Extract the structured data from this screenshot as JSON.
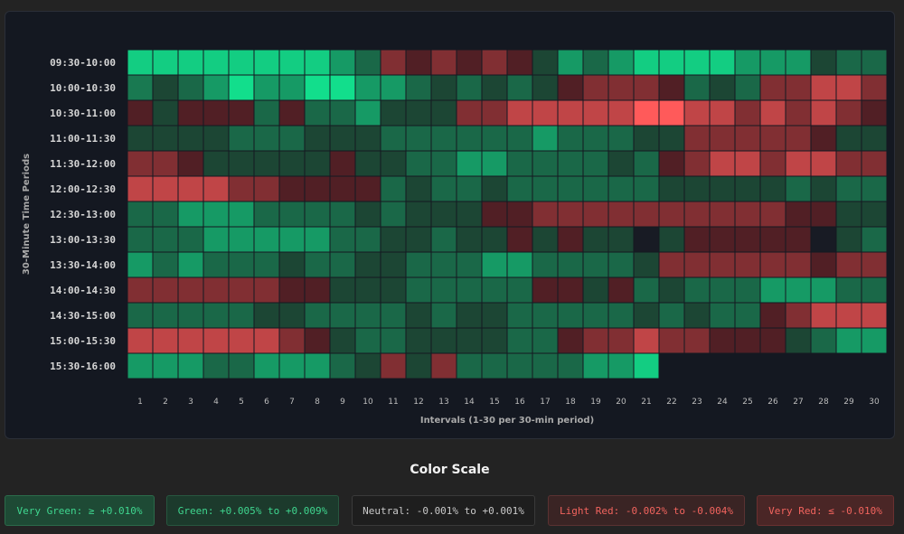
{
  "chart_data": {
    "type": "heatmap",
    "xlabel": "Intervals (1-30 per 30-min period)",
    "ylabel": "30-Minute Time Periods",
    "rows": [
      "09:30-10:00",
      "10:00-10:30",
      "10:30-11:00",
      "11:00-11:30",
      "11:30-12:00",
      "12:00-12:30",
      "12:30-13:00",
      "13:00-13:30",
      "13:30-14:00",
      "14:00-14:30",
      "14:30-15:00",
      "15:00-15:30",
      "15:30-16:00"
    ],
    "columns": [
      "1",
      "2",
      "3",
      "4",
      "5",
      "6",
      "7",
      "8",
      "9",
      "10",
      "11",
      "12",
      "13",
      "14",
      "15",
      "16",
      "17",
      "18",
      "19",
      "20",
      "21",
      "22",
      "23",
      "24",
      "25",
      "26",
      "27",
      "28",
      "29",
      "30"
    ],
    "value_unit": "% change (estimated from color)",
    "values": [
      [
        0.011,
        0.011,
        0.011,
        0.011,
        0.011,
        0.011,
        0.011,
        0.011,
        0.008,
        0.005,
        -0.006,
        -0.003,
        -0.006,
        -0.003,
        -0.006,
        -0.003,
        0.003,
        0.008,
        0.005,
        0.008,
        0.011,
        0.011,
        0.011,
        0.011,
        0.008,
        0.008,
        0.008,
        0.003,
        0.005,
        0.005
      ],
      [
        0.006,
        0.003,
        0.005,
        0.008,
        0.012,
        0.008,
        0.008,
        0.012,
        0.012,
        0.008,
        0.008,
        0.005,
        0.003,
        0.005,
        0.003,
        0.005,
        0.003,
        -0.003,
        -0.006,
        -0.006,
        -0.006,
        -0.003,
        0.005,
        0.003,
        0.005,
        -0.006,
        -0.006,
        -0.01,
        -0.01,
        -0.006
      ],
      [
        -0.003,
        0.003,
        -0.003,
        -0.003,
        -0.003,
        0.005,
        -0.003,
        0.005,
        0.005,
        0.008,
        0.003,
        0.003,
        0.003,
        -0.006,
        -0.006,
        -0.01,
        -0.01,
        -0.01,
        -0.01,
        -0.01,
        -0.014,
        -0.014,
        -0.01,
        -0.01,
        -0.006,
        -0.01,
        -0.006,
        -0.01,
        -0.006,
        -0.003
      ],
      [
        0.003,
        0.003,
        0.003,
        0.003,
        0.005,
        0.005,
        0.005,
        0.003,
        0.003,
        0.003,
        0.005,
        0.005,
        0.005,
        0.005,
        0.005,
        0.005,
        0.008,
        0.005,
        0.005,
        0.005,
        0.003,
        0.003,
        -0.006,
        -0.006,
        -0.006,
        -0.006,
        -0.006,
        -0.003,
        0.003,
        0.003
      ],
      [
        -0.006,
        -0.006,
        -0.003,
        0.003,
        0.003,
        0.003,
        0.003,
        0.003,
        -0.003,
        0.003,
        0.003,
        0.005,
        0.005,
        0.008,
        0.008,
        0.005,
        0.005,
        0.005,
        0.005,
        0.003,
        0.005,
        -0.003,
        -0.006,
        -0.01,
        -0.01,
        -0.006,
        -0.01,
        -0.01,
        -0.006,
        -0.006
      ],
      [
        -0.01,
        -0.01,
        -0.01,
        -0.01,
        -0.006,
        -0.006,
        -0.003,
        -0.003,
        -0.003,
        -0.003,
        0.005,
        0.003,
        0.005,
        0.005,
        0.003,
        0.005,
        0.005,
        0.005,
        0.005,
        0.005,
        0.005,
        0.003,
        0.003,
        0.003,
        0.003,
        0.003,
        0.005,
        0.003,
        0.005,
        0.005
      ],
      [
        0.005,
        0.005,
        0.008,
        0.008,
        0.008,
        0.005,
        0.005,
        0.005,
        0.005,
        0.003,
        0.005,
        0.003,
        0.003,
        0.003,
        -0.003,
        -0.003,
        -0.006,
        -0.006,
        -0.006,
        -0.006,
        -0.006,
        -0.006,
        -0.006,
        -0.006,
        -0.006,
        -0.006,
        -0.003,
        -0.003,
        0.003,
        0.003
      ],
      [
        0.005,
        0.005,
        0.005,
        0.008,
        0.008,
        0.008,
        0.008,
        0.008,
        0.005,
        0.005,
        0.003,
        0.003,
        0.005,
        0.003,
        0.003,
        -0.003,
        0.003,
        -0.003,
        0.003,
        0.003,
        0.0,
        0.003,
        -0.003,
        -0.003,
        -0.003,
        -0.003,
        -0.003,
        0.0,
        0.003,
        0.005
      ],
      [
        0.008,
        0.005,
        0.008,
        0.005,
        0.005,
        0.005,
        0.003,
        0.005,
        0.005,
        0.003,
        0.003,
        0.005,
        0.005,
        0.005,
        0.008,
        0.008,
        0.005,
        0.005,
        0.005,
        0.005,
        0.003,
        -0.006,
        -0.006,
        -0.006,
        -0.006,
        -0.006,
        -0.006,
        -0.003,
        -0.006,
        -0.006
      ],
      [
        -0.006,
        -0.006,
        -0.006,
        -0.006,
        -0.006,
        -0.006,
        -0.003,
        -0.003,
        0.003,
        0.003,
        0.003,
        0.005,
        0.005,
        0.005,
        0.005,
        0.005,
        -0.003,
        -0.003,
        0.003,
        -0.003,
        0.005,
        0.003,
        0.005,
        0.005,
        0.005,
        0.008,
        0.008,
        0.008,
        0.005,
        0.005
      ],
      [
        0.005,
        0.005,
        0.005,
        0.005,
        0.005,
        0.003,
        0.003,
        0.005,
        0.005,
        0.005,
        0.005,
        0.003,
        0.005,
        0.003,
        0.003,
        0.005,
        0.005,
        0.005,
        0.005,
        0.005,
        0.003,
        0.005,
        0.003,
        0.005,
        0.005,
        -0.003,
        -0.006,
        -0.01,
        -0.01,
        -0.01
      ],
      [
        -0.01,
        -0.01,
        -0.01,
        -0.01,
        -0.01,
        -0.01,
        -0.006,
        -0.003,
        0.003,
        0.005,
        0.005,
        0.003,
        0.003,
        0.003,
        0.003,
        0.005,
        0.005,
        -0.003,
        -0.006,
        -0.006,
        -0.01,
        -0.006,
        -0.006,
        -0.003,
        -0.003,
        -0.003,
        0.003,
        0.005,
        0.008,
        0.008
      ],
      [
        0.008,
        0.008,
        0.008,
        0.005,
        0.005,
        0.008,
        0.008,
        0.008,
        0.005,
        0.003,
        -0.006,
        0.003,
        -0.006,
        0.005,
        0.005,
        0.005,
        0.005,
        0.005,
        0.008,
        0.008,
        0.011,
        null,
        null,
        null,
        null,
        null,
        null,
        null,
        null,
        null
      ]
    ]
  },
  "legend": {
    "title": "Color Scale",
    "items": [
      {
        "label": "Very Green: ≥ +0.010%",
        "text_color": "#3fd68f",
        "bg": "#1e4a35",
        "border": "#2b6a4a"
      },
      {
        "label": "Green: +0.005% to +0.009%",
        "text_color": "#3fd68f",
        "bg": "#1c3a2c",
        "border": "#27563f"
      },
      {
        "label": "Neutral: -0.001% to +0.001%",
        "text_color": "#c9c9c9",
        "bg": "#1e1e1e",
        "border": "#3a3a3a"
      },
      {
        "label": "Light Red: -0.002% to -0.004%",
        "text_color": "#f2645e",
        "bg": "#3a2424",
        "border": "#5a3232"
      },
      {
        "label": "Very Red: ≤ -0.010%",
        "text_color": "#f2645e",
        "bg": "#4a2626",
        "border": "#6a3030"
      }
    ]
  }
}
